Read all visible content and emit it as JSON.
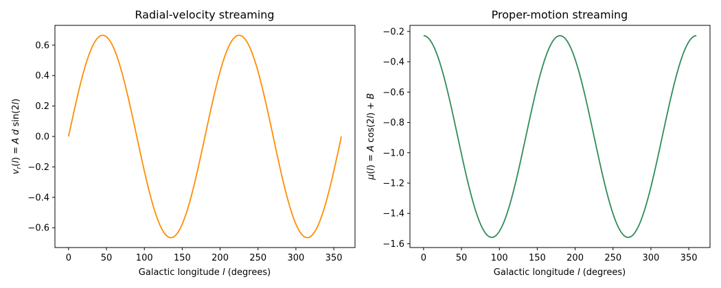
{
  "chart_data": [
    {
      "type": "line",
      "title": "Radial-velocity streaming",
      "xlabel": "Galactic longitude l (degrees)",
      "ylabel": "v_r(l) = A d sin(2l)",
      "xlim": [
        -18,
        378
      ],
      "ylim": [
        -0.73,
        0.73
      ],
      "xticks": [
        0,
        50,
        100,
        150,
        200,
        250,
        300,
        350
      ],
      "yticks": [
        -0.6,
        -0.4,
        -0.2,
        0.0,
        0.2,
        0.4,
        0.6
      ],
      "ytick_labels": [
        "−0.6",
        "−0.4",
        "−0.2",
        "0.0",
        "0.2",
        "0.4",
        "0.6"
      ],
      "grid": false,
      "series": [
        {
          "color": "#ff8c00",
          "function": "A*d*sin(2l)",
          "amplitude": 0.665,
          "offset": 0,
          "x_range": [
            0,
            360
          ],
          "points": [
            [
              0,
              0.0
            ],
            [
              45,
              0.665
            ],
            [
              90,
              0.0
            ],
            [
              135,
              -0.665
            ],
            [
              180,
              0.0
            ],
            [
              225,
              0.665
            ],
            [
              270,
              0.0
            ],
            [
              315,
              -0.665
            ],
            [
              360,
              0.0
            ]
          ]
        }
      ]
    },
    {
      "type": "line",
      "title": "Proper-motion streaming",
      "xlabel": "Galactic longitude l (degrees)",
      "ylabel": "μ(l) = A cos(2l) + B",
      "xlim": [
        -18,
        378
      ],
      "ylim": [
        -1.625,
        -0.16
      ],
      "xticks": [
        0,
        50,
        100,
        150,
        200,
        250,
        300,
        350
      ],
      "yticks": [
        -1.6,
        -1.4,
        -1.2,
        -1.0,
        -0.8,
        -0.6,
        -0.4,
        -0.2
      ],
      "ytick_labels": [
        "−1.6",
        "−1.4",
        "−1.2",
        "−1.0",
        "−0.8",
        "−0.6",
        "−0.4",
        "−0.2"
      ],
      "grid": false,
      "series": [
        {
          "color": "#2e8b57",
          "function": "A*cos(2l)+B",
          "amplitude": 0.665,
          "offset": -0.893,
          "x_range": [
            0,
            360
          ],
          "points": [
            [
              0,
              -0.228
            ],
            [
              45,
              -0.893
            ],
            [
              90,
              -1.558
            ],
            [
              135,
              -0.893
            ],
            [
              180,
              -0.228
            ],
            [
              225,
              -0.893
            ],
            [
              270,
              -1.558
            ],
            [
              315,
              -0.893
            ],
            [
              360,
              -0.228
            ]
          ]
        }
      ]
    }
  ]
}
